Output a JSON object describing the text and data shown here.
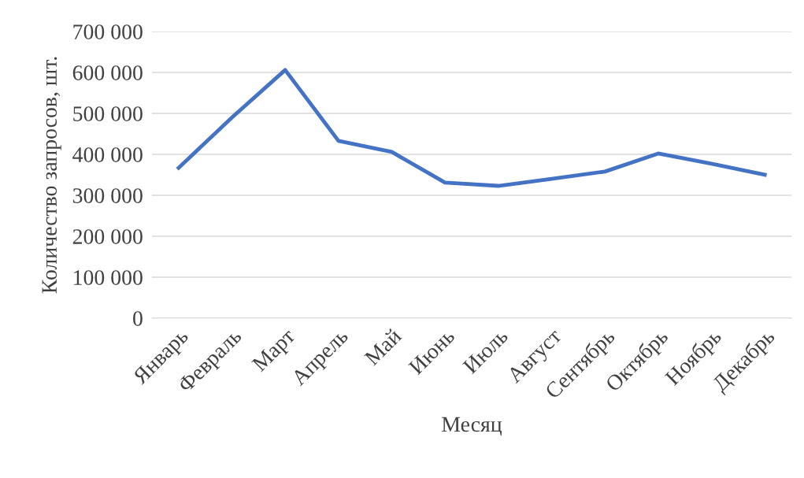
{
  "chart_data": {
    "type": "line",
    "xlabel": "Месяц",
    "ylabel": "Количество запросов, шт.",
    "categories": [
      "Январь",
      "Февраль",
      "Март",
      "Апрель",
      "Май",
      "Июнь",
      "Июль",
      "Август",
      "Сентябрь",
      "Октябрь",
      "Ноябрь",
      "Декабрь"
    ],
    "series": [
      {
        "color": "#4472c4",
        "values": [
          367000,
          490000,
          606000,
          433000,
          406000,
          331000,
          323000,
          340000,
          358000,
          402000,
          377000,
          350000
        ]
      }
    ],
    "ylim": [
      0,
      700000
    ],
    "yticks": [
      {
        "value": 0,
        "label": "0"
      },
      {
        "value": 100000,
        "label": "100 000"
      },
      {
        "value": 200000,
        "label": "200 000"
      },
      {
        "value": 300000,
        "label": "300 000"
      },
      {
        "value": 400000,
        "label": "400 000"
      },
      {
        "value": 500000,
        "label": "500 000"
      },
      {
        "value": 600000,
        "label": "600 000"
      },
      {
        "value": 700000,
        "label": "700 000"
      }
    ],
    "grid": "y",
    "marker": "none",
    "line_style": "solid"
  }
}
